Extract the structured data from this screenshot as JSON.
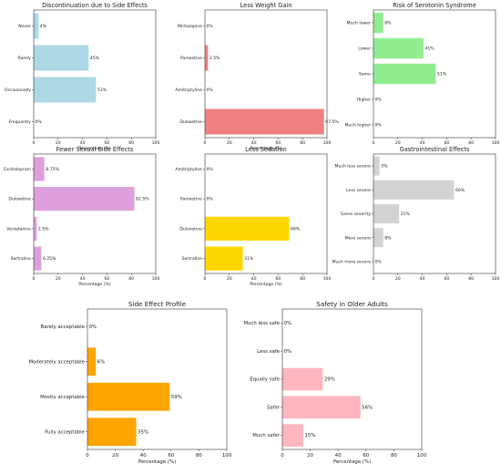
{
  "chart_data": [
    {
      "type": "bar",
      "orientation": "horizontal",
      "title": "Discontinuation due to Side Effects",
      "xlabel": "Percentage (%)",
      "xlim": [
        0,
        100
      ],
      "xticks": [
        "0",
        "20",
        "40",
        "60",
        "80",
        "100"
      ],
      "color": "#add8e6",
      "categories": [
        "Never",
        "Rarely",
        "Occasionally",
        "Frequently"
      ],
      "values": [
        4,
        45,
        51,
        0
      ],
      "labels": [
        "4%",
        "45%",
        "51%",
        "0%"
      ]
    },
    {
      "type": "bar",
      "orientation": "horizontal",
      "title": "Less Weight Gain",
      "xlabel": "Percentage (%)",
      "xlim": [
        0,
        100
      ],
      "xticks": [
        "0",
        "20",
        "40",
        "60",
        "80",
        "100"
      ],
      "color": "#f08080",
      "categories": [
        "Mirtazapine",
        "Paroxetine",
        "Amitriptyline",
        "Duloxetine"
      ],
      "values": [
        0,
        2.5,
        0,
        97.5
      ],
      "labels": [
        "0%",
        "2.5%",
        "0%",
        "97.5%"
      ]
    },
    {
      "type": "bar",
      "orientation": "horizontal",
      "title": "Risk of Serotonin Syndrome",
      "xlabel": "",
      "xlim": [
        0,
        100
      ],
      "xticks": [
        "0",
        "20",
        "40",
        "60",
        "80",
        "100"
      ],
      "color": "#90ee90",
      "categories": [
        "Much lower",
        "Lower",
        "Same",
        "Higher",
        "Much higher"
      ],
      "values": [
        8,
        41,
        51,
        0,
        0
      ],
      "labels": [
        "8%",
        "41%",
        "51%",
        "0%",
        "0%"
      ]
    },
    {
      "type": "bar",
      "orientation": "horizontal",
      "title": "Fewer Sexual Side Effects",
      "xlabel": "Percentage (%)",
      "xlim": [
        0,
        100
      ],
      "xticks": [
        "0",
        "20",
        "40",
        "60",
        "80",
        "100"
      ],
      "color": "#dda0dd",
      "categories": [
        "Escitalopram",
        "Duloxetine",
        "Venlafaxine",
        "Sertraline"
      ],
      "values": [
        8.75,
        82.5,
        2.5,
        6.25
      ],
      "labels": [
        "8.75%",
        "82.5%",
        "2.5%",
        "6.25%"
      ]
    },
    {
      "type": "bar",
      "orientation": "horizontal",
      "title": "Less Sedation",
      "xlabel": "Percentage (%)",
      "xlim": [
        0,
        100
      ],
      "xticks": [
        "0",
        "20",
        "40",
        "60",
        "80",
        "100"
      ],
      "color": "#ffd700",
      "categories": [
        "Amitriptyline",
        "Paroxetine",
        "Duloxetine",
        "Sertraline"
      ],
      "values": [
        0,
        0,
        69,
        31
      ],
      "labels": [
        "0%",
        "0%",
        "69%",
        "31%"
      ]
    },
    {
      "type": "bar",
      "orientation": "horizontal",
      "title": "Gastrointestinal Effects",
      "xlabel": "",
      "xlim": [
        0,
        100
      ],
      "xticks": [
        "0",
        "20",
        "40",
        "60",
        "80",
        "100"
      ],
      "color": "#d3d3d3",
      "categories": [
        "Much less severe",
        "Less severe",
        "Same severity",
        "More severe",
        "Much more severe"
      ],
      "values": [
        5,
        66,
        21,
        8,
        0
      ],
      "labels": [
        "5%",
        "66%",
        "21%",
        "8%",
        "0%"
      ]
    },
    {
      "type": "bar",
      "orientation": "horizontal",
      "title": "Side Effect Profile",
      "xlabel": "Percentage (%)",
      "xlim": [
        0,
        100
      ],
      "xticks": [
        "0",
        "20",
        "40",
        "60",
        "80",
        "100"
      ],
      "color": "#ffa500",
      "categories": [
        "Barely acceptable",
        "Moderately acceptable",
        "Mostly acceptable",
        "Fully acceptable"
      ],
      "values": [
        0,
        6,
        59,
        35
      ],
      "labels": [
        "0%",
        "6%",
        "59%",
        "35%"
      ]
    },
    {
      "type": "bar",
      "orientation": "horizontal",
      "title": "Safety in Older Adults",
      "xlabel": "Percentage (%)",
      "xlim": [
        0,
        100
      ],
      "xticks": [
        "0",
        "20",
        "40",
        "60",
        "80",
        "100"
      ],
      "color": "#ffb6c1",
      "categories": [
        "Much less safe",
        "Less safe",
        "Equally safe",
        "Safer",
        "Much safer"
      ],
      "values": [
        0,
        0,
        29,
        56,
        15
      ],
      "labels": [
        "0%",
        "0%",
        "29%",
        "56%",
        "15%"
      ]
    }
  ]
}
